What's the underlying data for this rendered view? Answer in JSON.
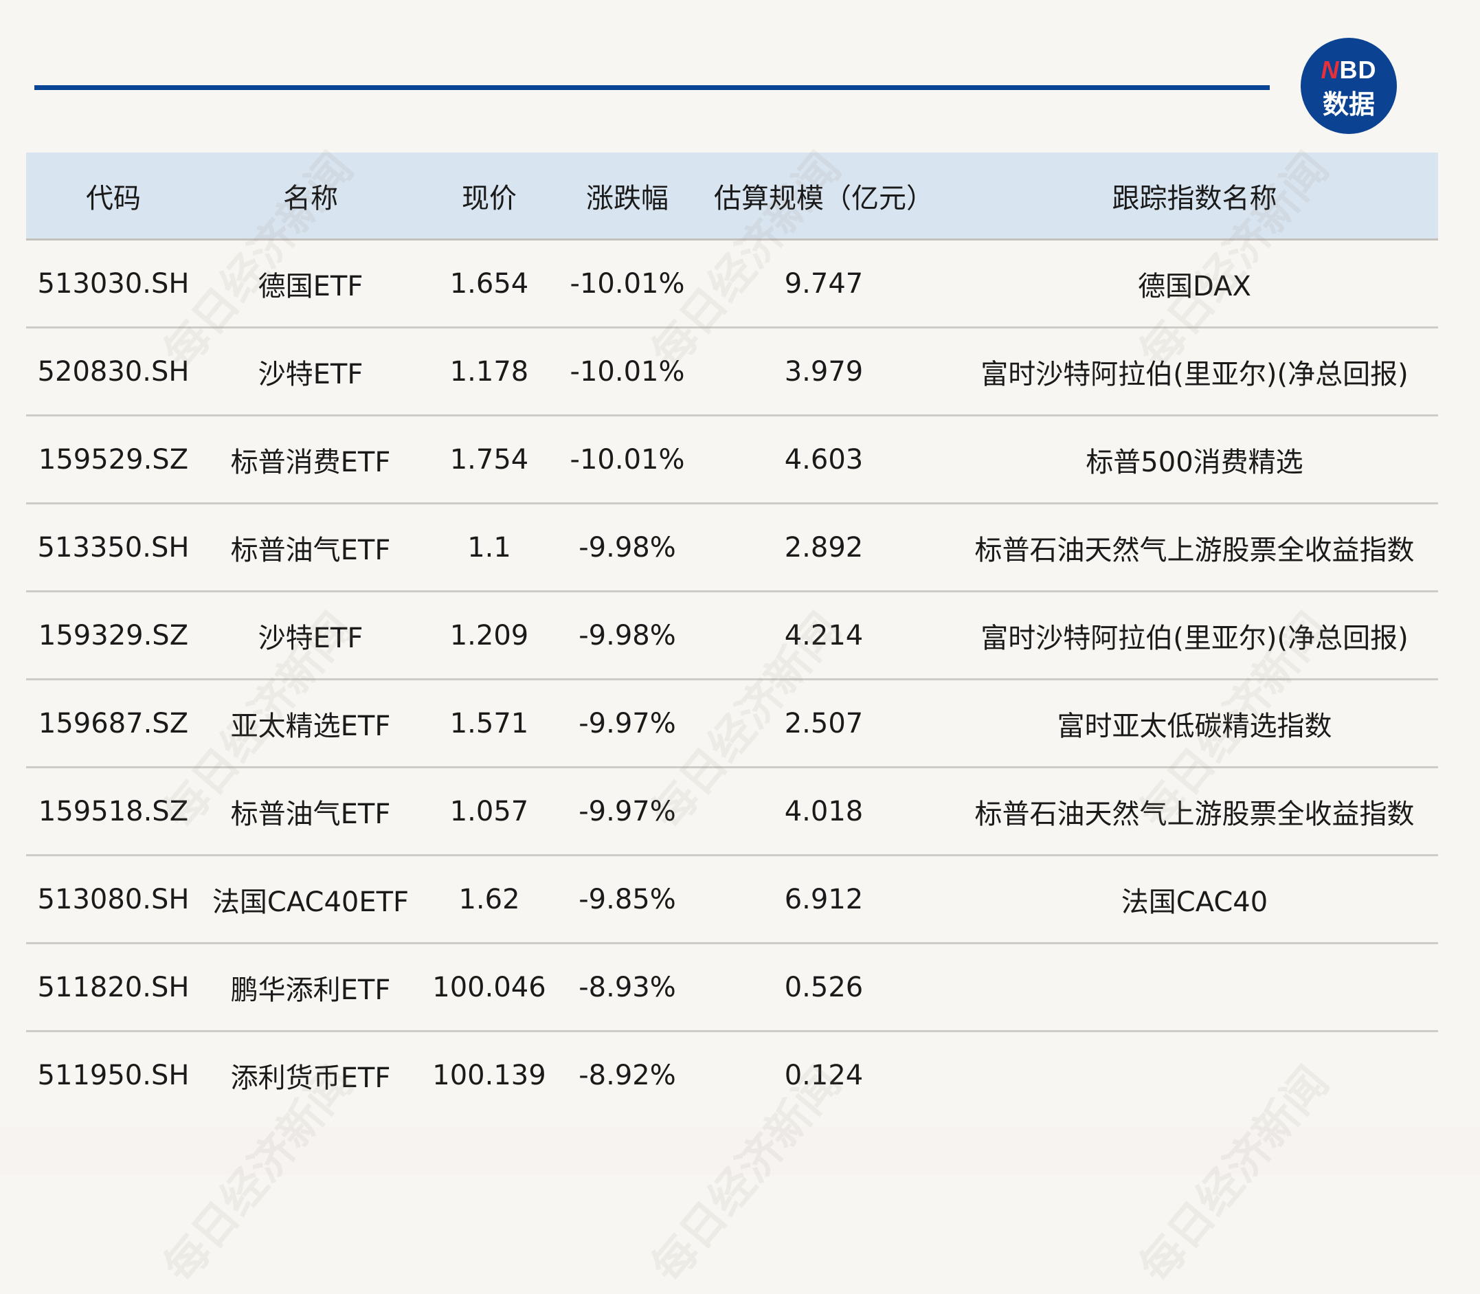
{
  "logo": {
    "text_red": "N",
    "text_blue": "BD",
    "text_cn": "数据"
  },
  "watermark": "每日经济新闻",
  "colors": {
    "accent": "#0a4595",
    "header_bg": "#d8e4ef",
    "logo_red": "#e8303a"
  },
  "table": {
    "headers": [
      "代码",
      "名称",
      "现价",
      "涨跌幅",
      "估算规模（亿元）",
      "跟踪指数名称"
    ],
    "rows": [
      [
        "513030.SH",
        "德国ETF",
        "1.654",
        "-10.01%",
        "9.747",
        "德国DAX"
      ],
      [
        "520830.SH",
        "沙特ETF",
        "1.178",
        "-10.01%",
        "3.979",
        "富时沙特阿拉伯(里亚尔)(净总回报)"
      ],
      [
        "159529.SZ",
        "标普消费ETF",
        "1.754",
        "-10.01%",
        "4.603",
        "标普500消费精选"
      ],
      [
        "513350.SH",
        "标普油气ETF",
        "1.1",
        "-9.98%",
        "2.892",
        "标普石油天然气上游股票全收益指数"
      ],
      [
        "159329.SZ",
        "沙特ETF",
        "1.209",
        "-9.98%",
        "4.214",
        "富时沙特阿拉伯(里亚尔)(净总回报)"
      ],
      [
        "159687.SZ",
        "亚太精选ETF",
        "1.571",
        "-9.97%",
        "2.507",
        "富时亚太低碳精选指数"
      ],
      [
        "159518.SZ",
        "标普油气ETF",
        "1.057",
        "-9.97%",
        "4.018",
        "标普石油天然气上游股票全收益指数"
      ],
      [
        "513080.SH",
        "法国CAC40ETF",
        "1.62",
        "-9.85%",
        "6.912",
        "法国CAC40"
      ],
      [
        "511820.SH",
        "鹏华添利ETF",
        "100.046",
        "-8.93%",
        "0.526",
        ""
      ],
      [
        "511950.SH",
        "添利货币ETF",
        "100.139",
        "-8.92%",
        "0.124",
        ""
      ]
    ]
  }
}
